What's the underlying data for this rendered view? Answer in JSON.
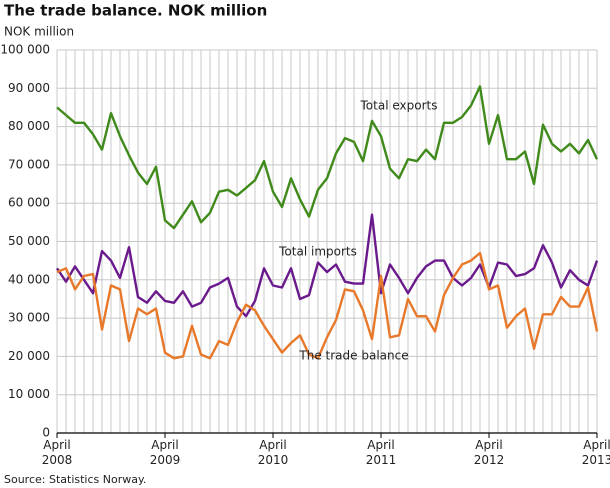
{
  "chart_data": {
    "type": "line",
    "title": "The trade balance. NOK million",
    "y_label": "NOK million",
    "source": "Source: Statistics Norway.",
    "categories": [
      "April 2008",
      null,
      null,
      null,
      null,
      null,
      null,
      null,
      null,
      null,
      null,
      null,
      "April 2009",
      null,
      null,
      null,
      null,
      null,
      null,
      null,
      null,
      null,
      null,
      null,
      "April 2010",
      null,
      null,
      null,
      null,
      null,
      null,
      null,
      null,
      null,
      null,
      null,
      "April 2011",
      null,
      null,
      null,
      null,
      null,
      null,
      null,
      null,
      null,
      null,
      null,
      "April 2012",
      null,
      null,
      null,
      null,
      null,
      null,
      null,
      null,
      null,
      null,
      null,
      "April 2013"
    ],
    "ylim": [
      0,
      100000
    ],
    "yticks": [
      0,
      {
        "value": 10000,
        "label": "10 000"
      },
      {
        "value": 20000,
        "label": "20 000"
      },
      {
        "value": 30000,
        "label": "30 000"
      },
      {
        "value": 40000,
        "label": "40 000"
      },
      {
        "value": 50000,
        "label": "50 000"
      },
      {
        "value": 60000,
        "label": "60 000"
      },
      {
        "value": 70000,
        "label": "70 000"
      },
      {
        "value": 80000,
        "label": "80 000"
      },
      {
        "value": 90000,
        "label": "90 000"
      },
      {
        "value": 100000,
        "label": "100 000"
      }
    ],
    "grid": true,
    "series": [
      {
        "name": "Total exports",
        "color": "#3f8a1a",
        "values": [
          85000,
          83000,
          81000,
          81000,
          78000,
          74000,
          83500,
          77500,
          72500,
          68000,
          65000,
          69500,
          55500,
          53500,
          57000,
          60500,
          55000,
          57500,
          63000,
          63500,
          62000,
          64000,
          66000,
          71000,
          63000,
          59000,
          66500,
          61000,
          56500,
          63500,
          66500,
          73000,
          77000,
          76000,
          71000,
          81500,
          77500,
          69000,
          66500,
          71500,
          71000,
          74000,
          71500,
          81000,
          81000,
          82500,
          85500,
          90500,
          75500,
          83000,
          71500,
          71500,
          73500,
          65000,
          80500,
          75500,
          73500,
          75500,
          73000,
          76500,
          71500
        ]
      },
      {
        "name": "Total imports",
        "color": "#6a1a8c",
        "values": [
          43000,
          39500,
          43500,
          40000,
          36500,
          47500,
          45000,
          40500,
          48500,
          35500,
          34000,
          37000,
          34500,
          34000,
          37000,
          33000,
          34000,
          38000,
          39000,
          40500,
          33000,
          30500,
          34500,
          43000,
          38500,
          38000,
          43000,
          35000,
          36000,
          44500,
          42000,
          44000,
          39500,
          39000,
          39000,
          57000,
          36500,
          44000,
          40500,
          36500,
          40500,
          43500,
          45000,
          45000,
          40500,
          38500,
          40500,
          44000,
          38000,
          44500,
          44000,
          41000,
          41500,
          43000,
          49000,
          44500,
          38000,
          42500,
          40000,
          38500,
          45000
        ]
      },
      {
        "name": "The trade balance",
        "color": "#e8782a",
        "values": [
          42000,
          43000,
          37500,
          41000,
          41500,
          27000,
          38500,
          37500,
          24000,
          32500,
          31000,
          32500,
          21000,
          19500,
          20000,
          28000,
          20500,
          19500,
          24000,
          23000,
          29000,
          33500,
          32000,
          28000,
          24500,
          21000,
          23500,
          25500,
          20500,
          19500,
          25000,
          29500,
          37500,
          37000,
          32000,
          24500,
          41000,
          25000,
          25500,
          35000,
          30500,
          30500,
          26500,
          36000,
          40500,
          44000,
          45000,
          47000,
          37500,
          38500,
          27500,
          30500,
          32500,
          22000,
          31000,
          31000,
          35500,
          33000,
          33000,
          38000,
          26500
        ]
      }
    ]
  }
}
